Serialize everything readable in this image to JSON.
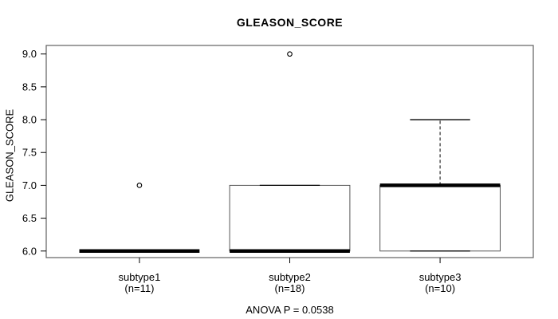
{
  "chart_data": {
    "type": "boxplot",
    "title": "GLEASON_SCORE",
    "ylabel": "GLEASON_SCORE",
    "footer": "ANOVA P = 0.0538",
    "yticks": [
      6.0,
      6.5,
      7.0,
      7.5,
      8.0,
      8.5,
      9.0
    ],
    "ylim": [
      5.9,
      9.13
    ],
    "grid": false,
    "groups": [
      {
        "label": "subtype1",
        "sublabel": "(n=11)",
        "position": 1,
        "q1": 6.0,
        "median": 6.0,
        "q3": 6.0,
        "whisker_low": 6.0,
        "whisker_high": 6.0,
        "outliers": [
          7.0
        ]
      },
      {
        "label": "subtype2",
        "sublabel": "(n=18)",
        "position": 2,
        "q1": 6.0,
        "median": 6.0,
        "q3": 7.0,
        "whisker_low": 6.0,
        "whisker_high": 7.0,
        "outliers": [
          9.0
        ]
      },
      {
        "label": "subtype3",
        "sublabel": "(n=10)",
        "position": 3,
        "q1": 6.0,
        "median": 7.0,
        "q3": 7.0,
        "whisker_low": 6.0,
        "whisker_high": 8.0,
        "outliers": []
      }
    ],
    "colors": {
      "line": "#000000",
      "box_stroke": "#555555",
      "plot_border": "#606060",
      "text": "#000000",
      "background": "#ffffff"
    }
  }
}
